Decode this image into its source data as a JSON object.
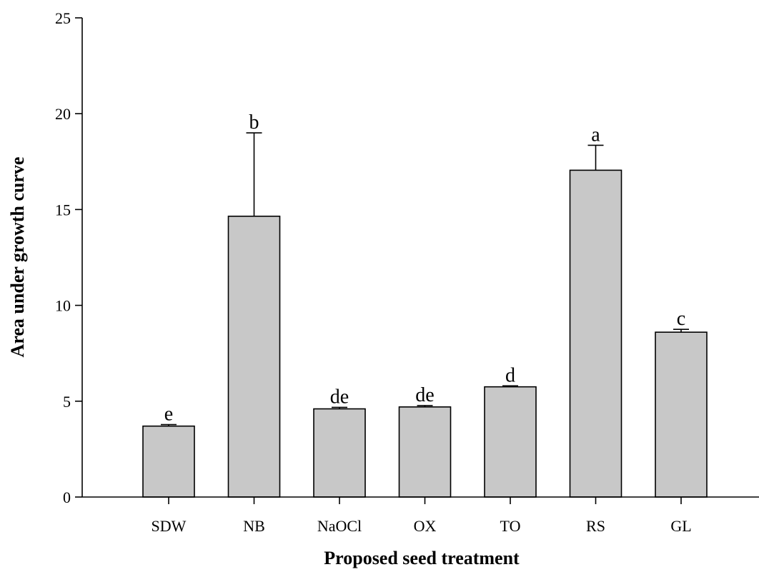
{
  "chart_data": {
    "type": "bar",
    "title": "",
    "xlabel": "Proposed seed treatment",
    "ylabel": "Area under growth curve",
    "ylim": [
      0,
      25
    ],
    "yticks": [
      0,
      5,
      10,
      15,
      20,
      25
    ],
    "categories": [
      "SDW",
      "NB",
      "NaOCl",
      "OX",
      "TO",
      "RS",
      "GL"
    ],
    "values": [
      3.7,
      14.65,
      4.6,
      4.7,
      5.75,
      17.05,
      8.6
    ],
    "errors": [
      0.08,
      4.35,
      0.08,
      0.07,
      0.05,
      1.3,
      0.15
    ],
    "significance": [
      "e",
      "b",
      "de",
      "de",
      "d",
      "a",
      "c"
    ],
    "bar_color": "#c8c8c8",
    "edge_color": "#000000",
    "grid": false,
    "legend": "none"
  }
}
